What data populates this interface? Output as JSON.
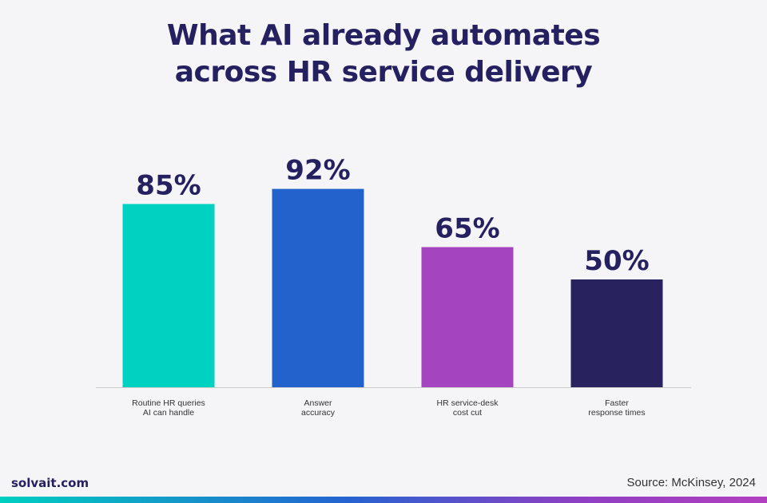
{
  "title_lines": [
    "What AI already automates",
    "across HR service delivery"
  ],
  "footer": {
    "brand": "solvait.com",
    "source": "Source: McKinsey, 2024"
  },
  "colors": {
    "title": "#25205f",
    "bars": [
      "#00d1c1",
      "#2262cc",
      "#a544bf",
      "#28225e"
    ],
    "axis": "#cccccc",
    "value_label": "#25205f"
  },
  "chart_data": {
    "type": "bar",
    "title": "What AI already automates across HR service delivery",
    "categories": [
      [
        "Routine HR queries",
        "AI can handle"
      ],
      [
        "Answer",
        "accuracy"
      ],
      [
        "HR service-desk",
        "cost cut"
      ],
      [
        "Faster",
        "response times"
      ]
    ],
    "values": [
      85,
      92,
      65,
      50
    ],
    "value_labels": [
      "85%",
      "92%",
      "65%",
      "50%"
    ],
    "unit": "%",
    "ylim": [
      0,
      100
    ],
    "grid": false,
    "legend": "none"
  }
}
